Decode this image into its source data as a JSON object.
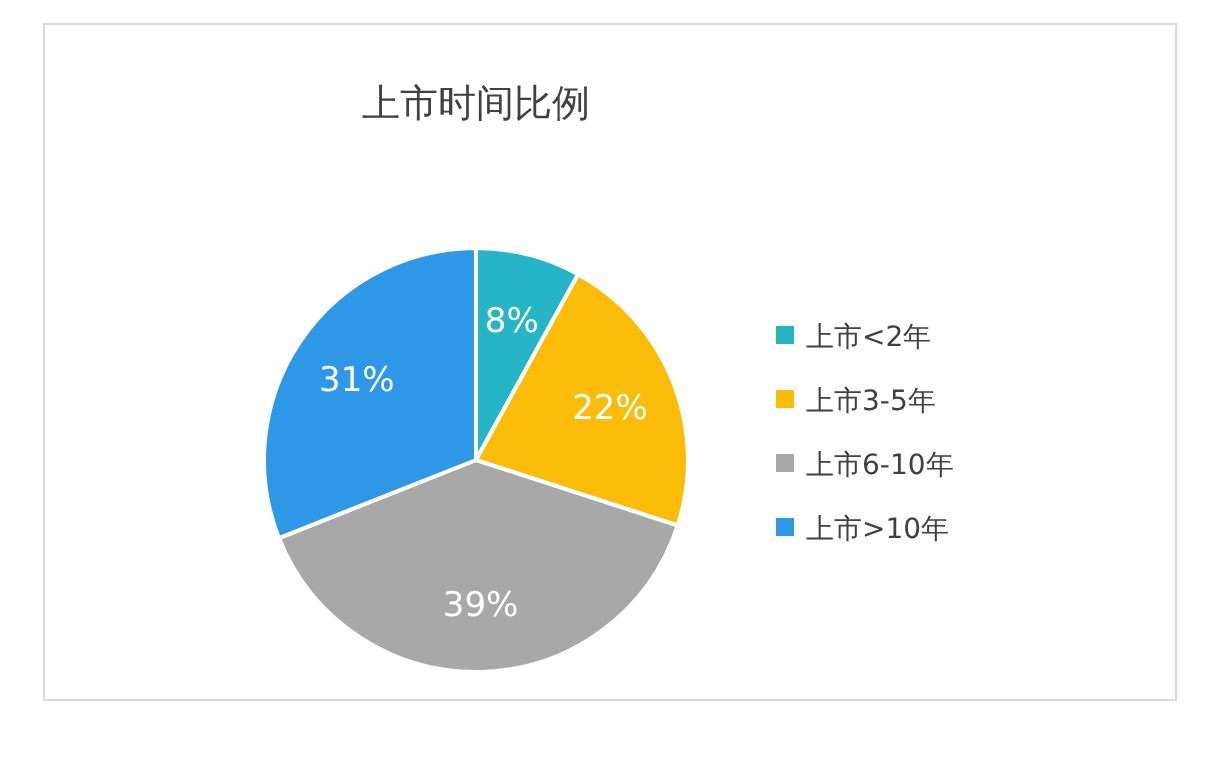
{
  "chart_data": {
    "type": "pie",
    "title": "上市时间比例",
    "categories": [
      "上市<2年",
      "上市3-5年",
      "上市6-10年",
      "上市>10年"
    ],
    "values": [
      8,
      22,
      39,
      31
    ],
    "colors": [
      "#25b5c6",
      "#fbbc09",
      "#a8a8a8",
      "#2e97e6"
    ],
    "value_labels": [
      "8%",
      "22%",
      "39%",
      "31%"
    ],
    "legend": "right"
  }
}
